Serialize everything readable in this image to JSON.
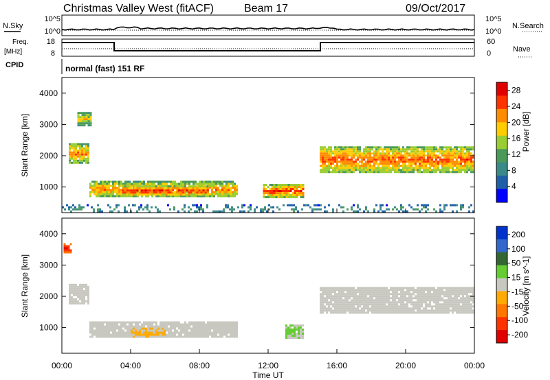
{
  "header": {
    "station": "Christmas Valley West (fitACF)",
    "beam": "Beam 17",
    "date": "09/Oct/2017"
  },
  "noise_panel": {
    "left_label": "N.Sky",
    "right_label": "N.Search",
    "left_ticks": [
      "10^5",
      "10^0"
    ],
    "right_ticks": [
      "10^5",
      "10^0"
    ]
  },
  "freq_panel": {
    "left_label_1": "Freq.",
    "left_label_2": "[MHz]",
    "right_label": "Nave",
    "left_ticks": [
      "18",
      "8"
    ],
    "right_ticks": [
      "60",
      "0"
    ]
  },
  "cpid": {
    "label": "CPID",
    "text": "normal (fast) 151 RF"
  },
  "x_axis": {
    "label": "Time UT",
    "ticks": [
      "00:00",
      "04:00",
      "08:00",
      "12:00",
      "16:00",
      "20:00",
      "00:00"
    ]
  },
  "colors": {
    "power_scale": [
      "#0000ff",
      "#1f5fa8",
      "#3a8a8a",
      "#4c9a5a",
      "#9acd32",
      "#ffcc00",
      "#ff8c00",
      "#ff3300",
      "#e00000"
    ],
    "velocity_scale": [
      "#0033cc",
      "#3366cc",
      "#336633",
      "#66cc33",
      "#c8c8c0",
      "#ffaa00",
      "#ff7700",
      "#ff3300",
      "#e00000"
    ]
  },
  "chart_data": [
    {
      "type": "heatmap",
      "panel": "power",
      "ylabel": "Slant Range [km]",
      "y_ticks": [
        "1000",
        "2000",
        "3000",
        "4000"
      ],
      "ylim": [
        180,
        4500
      ],
      "xlim_hours": [
        0,
        24
      ],
      "colorbar": {
        "label": "Power [dB]",
        "ticks": [
          "4",
          "8",
          "12",
          "16",
          "20",
          "24",
          "28"
        ],
        "range": [
          0,
          30
        ]
      },
      "regions": [
        {
          "name": "early-band",
          "t": [
            0.4,
            1.6
          ],
          "range_km": [
            1800,
            2400
          ],
          "value": 22
        },
        {
          "name": "early-band-upper",
          "t": [
            0.9,
            1.7
          ],
          "range_km": [
            3000,
            3400
          ],
          "value": 18
        },
        {
          "name": "mid-band",
          "t": [
            1.6,
            10.2
          ],
          "range_km": [
            700,
            1200
          ],
          "value": 22
        },
        {
          "name": "mid-band-core",
          "t": [
            3.5,
            8.5
          ],
          "range_km": [
            750,
            1050
          ],
          "value": 27
        },
        {
          "name": "evening-patch",
          "t": [
            11.7,
            14.0
          ],
          "range_km": [
            700,
            1100
          ],
          "value": 26
        },
        {
          "name": "ns-band",
          "t": [
            15.0,
            24.0
          ],
          "range_km": [
            1500,
            2300
          ],
          "value": 24
        },
        {
          "name": "low-range-clutter",
          "t": [
            0,
            24
          ],
          "range_km": [
            200,
            450
          ],
          "value": 10
        }
      ]
    },
    {
      "type": "heatmap",
      "panel": "velocity",
      "ylabel": "Slant Range [km]",
      "y_ticks": [
        "1000",
        "2000",
        "3000",
        "4000"
      ],
      "ylim": [
        180,
        4500
      ],
      "xlim_hours": [
        0,
        24
      ],
      "colorbar": {
        "label": "Velocity [m s^-1]",
        "ticks": [
          "200",
          "100",
          "50",
          "15",
          "-15",
          "-50",
          "-100",
          "-200"
        ],
        "range": [
          -250,
          250
        ]
      },
      "regions": [
        {
          "name": "early-band",
          "t": [
            0.4,
            1.6
          ],
          "range_km": [
            1800,
            2400
          ],
          "value": 0
        },
        {
          "name": "early-red-patch",
          "t": [
            0.1,
            0.5
          ],
          "range_km": [
            3400,
            3700
          ],
          "value": -200
        },
        {
          "name": "mid-band",
          "t": [
            1.6,
            10.2
          ],
          "range_km": [
            700,
            1200
          ],
          "value": 0
        },
        {
          "name": "mid-band-orange",
          "t": [
            4.0,
            6.0
          ],
          "range_km": [
            700,
            1000
          ],
          "value": -40
        },
        {
          "name": "evening-green",
          "t": [
            13.0,
            14.0
          ],
          "range_km": [
            700,
            1100
          ],
          "value": 40
        },
        {
          "name": "ns-band",
          "t": [
            15.0,
            24.0
          ],
          "range_km": [
            1500,
            2300
          ],
          "value": 0
        }
      ]
    }
  ]
}
